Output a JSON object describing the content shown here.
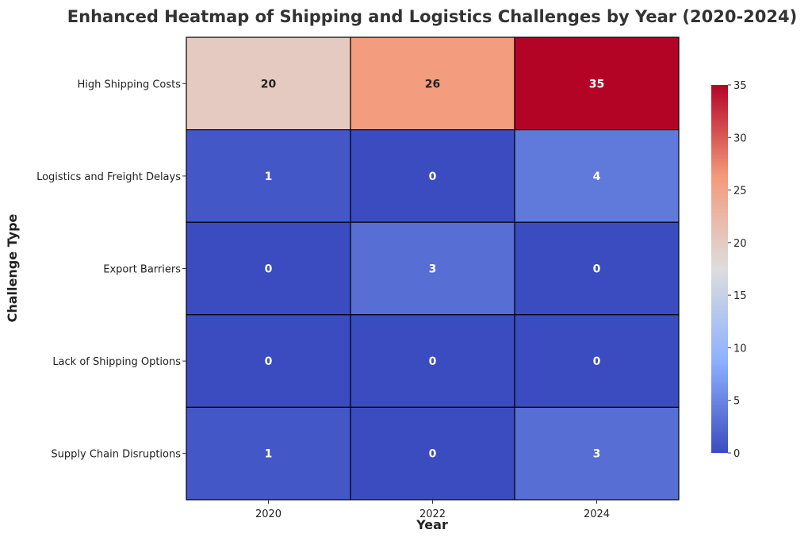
{
  "chart_data": {
    "type": "heatmap",
    "title": "Enhanced Heatmap of Shipping and Logistics Challenges by Year (2020-2024)",
    "xlabel": "Year",
    "ylabel": "Challenge Type",
    "x": [
      "2020",
      "2022",
      "2024"
    ],
    "y": [
      "High Shipping Costs",
      "Logistics and Freight Delays",
      "Export Barriers",
      "Lack of Shipping Options",
      "Supply Chain Disruptions"
    ],
    "values": [
      [
        20,
        26,
        35
      ],
      [
        1,
        0,
        4
      ],
      [
        0,
        3,
        0
      ],
      [
        0,
        0,
        0
      ],
      [
        1,
        0,
        3
      ]
    ],
    "colormap": "coolwarm",
    "colormap_stops": [
      "#3b4cc0",
      "#8db0fe",
      "#dddddd",
      "#f49a7b",
      "#b40426"
    ],
    "vmin": 0,
    "vmax": 35,
    "colorbar_ticks": [
      0,
      5,
      10,
      15,
      20,
      25,
      30,
      35
    ],
    "annotations": true
  }
}
